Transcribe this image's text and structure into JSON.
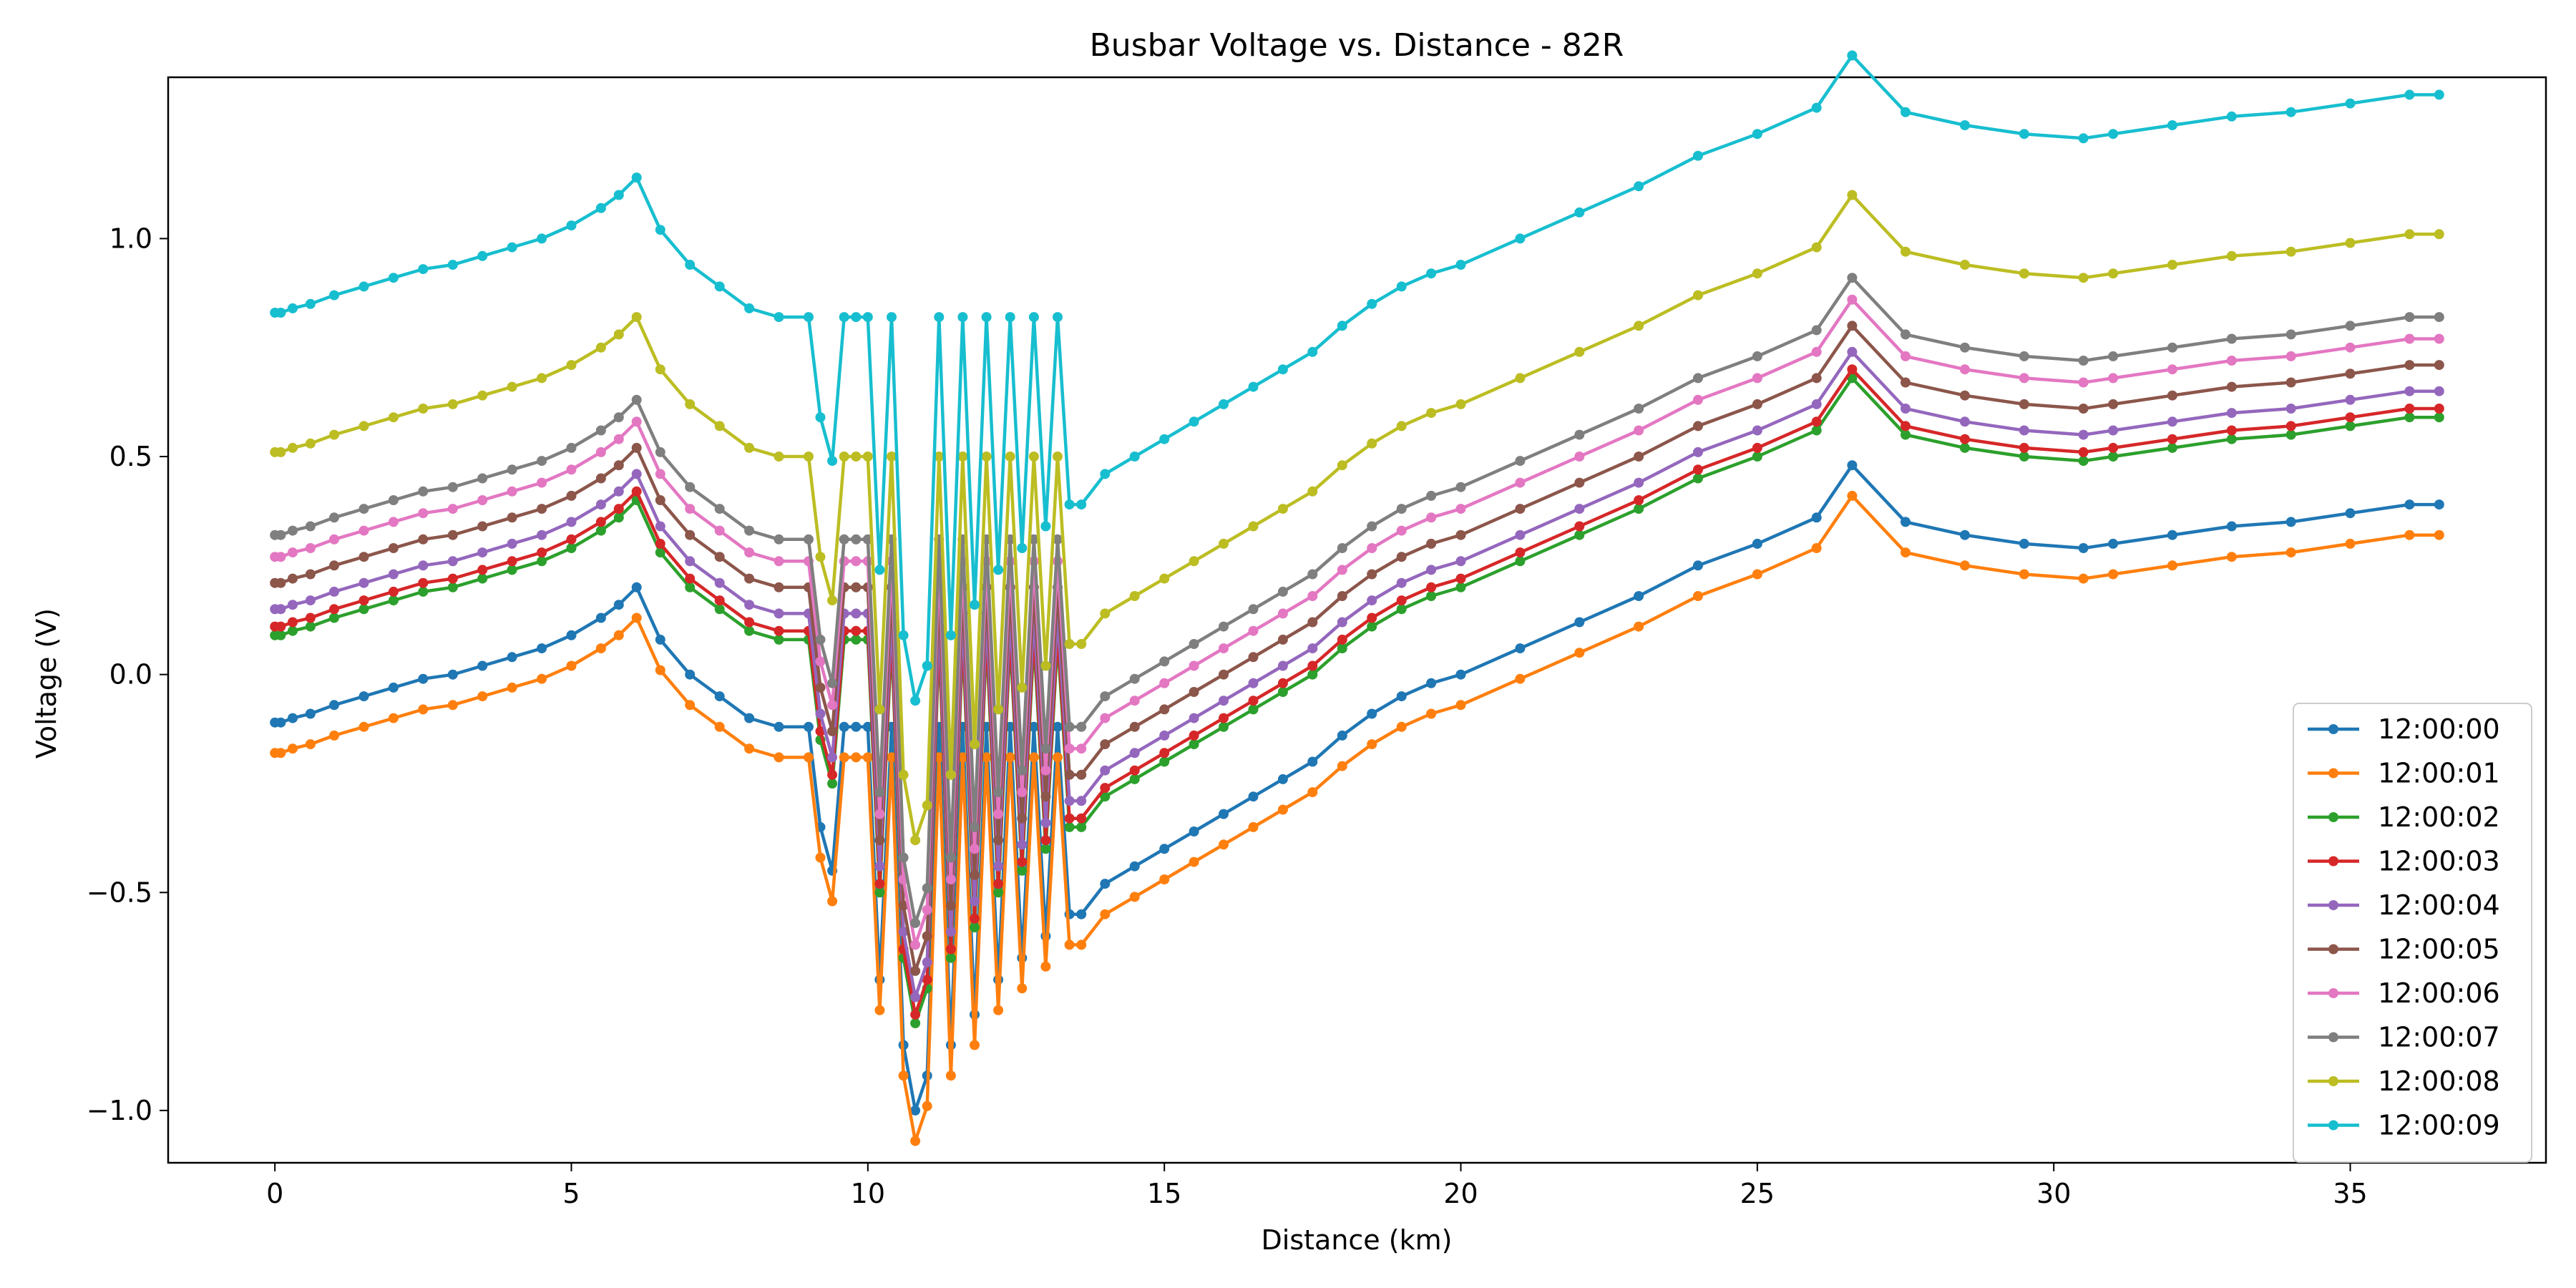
{
  "chart_data": {
    "type": "line",
    "title": "Busbar Voltage vs. Distance - 82R",
    "xlabel": "Distance (km)",
    "ylabel": "Voltage (V)",
    "xlim": [
      -1.8,
      38.3
    ],
    "ylim": [
      -1.12,
      1.37
    ],
    "xticks": [
      0,
      5,
      10,
      15,
      20,
      25,
      30,
      35
    ],
    "yticks": [
      -1.0,
      -0.5,
      0.0,
      0.5,
      1.0
    ],
    "xtick_labels": [
      "0",
      "5",
      "10",
      "15",
      "20",
      "25",
      "30",
      "35"
    ],
    "ytick_labels": [
      "−1.0",
      "−0.5",
      "0.0",
      "0.5",
      "1.0"
    ],
    "grid": false,
    "legend_position": "lower-right",
    "base_x": [
      0.0,
      0.1,
      0.3,
      0.6,
      1.0,
      1.5,
      2.0,
      2.5,
      3.0,
      3.5,
      4.0,
      4.5,
      5.0,
      5.5,
      5.8,
      6.1,
      6.5,
      7.0,
      7.5,
      8.0,
      8.5,
      9.0,
      9.2,
      9.4,
      9.6,
      9.8,
      10.0,
      10.2,
      10.4,
      10.6,
      10.8,
      11.0,
      11.2,
      11.4,
      11.6,
      11.8,
      12.0,
      12.2,
      12.4,
      12.6,
      12.8,
      13.0,
      13.2,
      13.4,
      13.6,
      14.0,
      14.5,
      15.0,
      15.5,
      16.0,
      16.5,
      17.0,
      17.5,
      18.0,
      18.5,
      19.0,
      19.5,
      20.0,
      21.0,
      22.0,
      23.0,
      24.0,
      25.0,
      26.0,
      26.6,
      27.5,
      28.5,
      29.5,
      30.5,
      31.0,
      32.0,
      33.0,
      34.0,
      35.0,
      36.0,
      36.5
    ],
    "base_y": [
      -0.11,
      -0.11,
      -0.1,
      -0.09,
      -0.07,
      -0.05,
      -0.03,
      -0.01,
      0.0,
      0.02,
      0.04,
      0.06,
      0.09,
      0.13,
      0.16,
      0.2,
      0.08,
      0.0,
      -0.05,
      -0.1,
      -0.12,
      -0.12,
      -0.35,
      -0.45,
      -0.12,
      -0.12,
      -0.12,
      -0.7,
      -0.12,
      -0.85,
      -1.0,
      -0.92,
      -0.12,
      -0.85,
      -0.12,
      -0.78,
      -0.12,
      -0.7,
      -0.12,
      -0.65,
      -0.12,
      -0.6,
      -0.12,
      -0.55,
      -0.55,
      -0.48,
      -0.44,
      -0.4,
      -0.36,
      -0.32,
      -0.28,
      -0.24,
      -0.2,
      -0.14,
      -0.09,
      -0.05,
      -0.02,
      0.0,
      0.06,
      0.12,
      0.18,
      0.25,
      0.3,
      0.36,
      0.48,
      0.35,
      0.32,
      0.3,
      0.29,
      0.3,
      0.32,
      0.34,
      0.35,
      0.37,
      0.39,
      0.39
    ],
    "series_names": [
      "12:00:00",
      "12:00:01",
      "12:00:02",
      "12:00:03",
      "12:00:04",
      "12:00:05",
      "12:00:06",
      "12:00:07",
      "12:00:08",
      "12:00:09"
    ],
    "series_offsets": [
      0.0,
      -0.07,
      0.2,
      0.22,
      0.26,
      0.32,
      0.38,
      0.43,
      0.62,
      0.94
    ],
    "series_colors": [
      "#1f77b4",
      "#ff7f0e",
      "#2ca02c",
      "#d62728",
      "#9467bd",
      "#8c564b",
      "#e377c2",
      "#7f7f7f",
      "#bcbd22",
      "#17becf"
    ],
    "series": [
      {
        "name": "12:00:00",
        "color": "#1f77b4"
      },
      {
        "name": "12:00:01",
        "color": "#ff7f0e"
      },
      {
        "name": "12:00:02",
        "color": "#2ca02c"
      },
      {
        "name": "12:00:03",
        "color": "#d62728"
      },
      {
        "name": "12:00:04",
        "color": "#9467bd"
      },
      {
        "name": "12:00:05",
        "color": "#8c564b"
      },
      {
        "name": "12:00:06",
        "color": "#e377c2"
      },
      {
        "name": "12:00:07",
        "color": "#7f7f7f"
      },
      {
        "name": "12:00:08",
        "color": "#bcbd22"
      },
      {
        "name": "12:00:09",
        "color": "#17becf"
      }
    ]
  }
}
